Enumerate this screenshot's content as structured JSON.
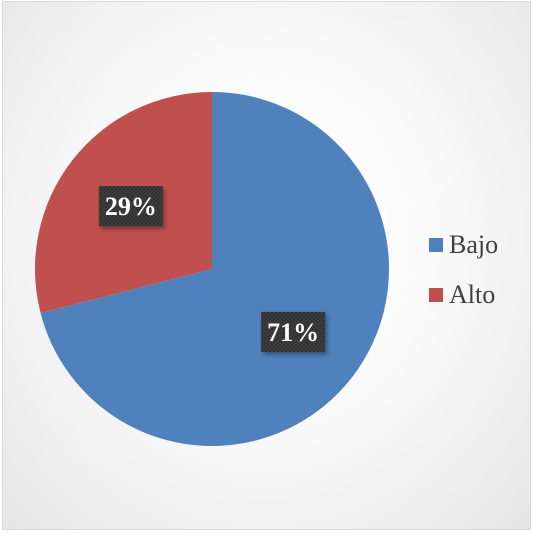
{
  "chart_data": {
    "type": "pie",
    "title": "",
    "categories": [
      "Bajo",
      "Alto"
    ],
    "values": [
      71,
      29
    ],
    "data_labels": [
      "71%",
      "29%"
    ],
    "colors": [
      "#4f81bd",
      "#c0504d"
    ],
    "legend_position": "right",
    "start_angle": "12 o'clock, clockwise"
  }
}
